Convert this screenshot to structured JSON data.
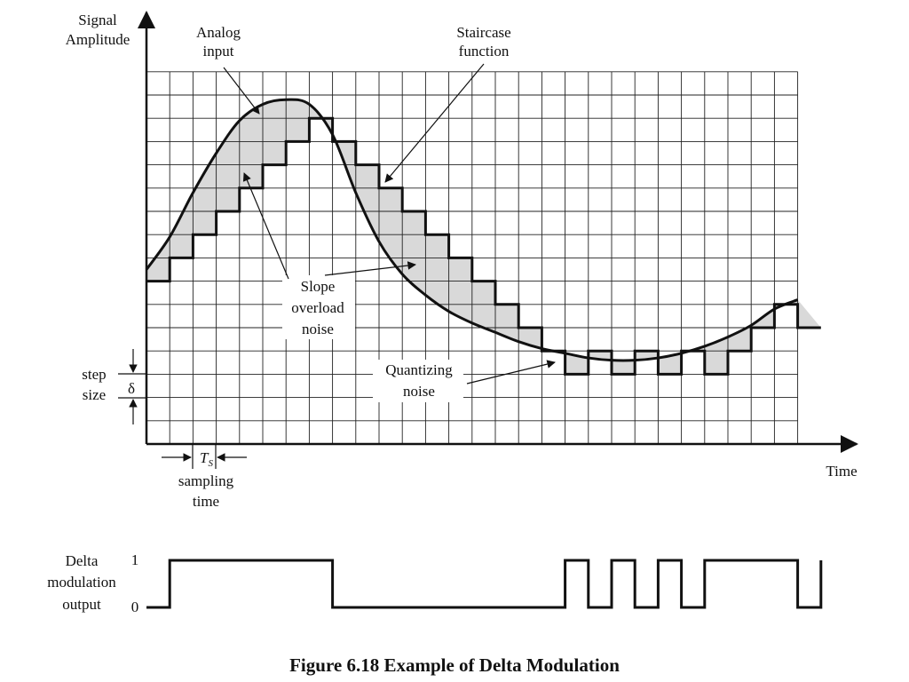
{
  "figure": {
    "caption": "Figure 6.18  Example of Delta Modulation",
    "y_axis_label": [
      "Signal",
      "Amplitude"
    ],
    "x_axis_label": "Time",
    "annotations": {
      "analog_input": [
        "Analog",
        "input"
      ],
      "staircase_function": [
        "Staircase",
        "function"
      ],
      "slope_overload_noise": [
        "Slope",
        "overload",
        "noise"
      ],
      "quantizing_noise": [
        "Quantizing",
        "noise"
      ],
      "step_size": [
        "step",
        "size"
      ],
      "delta_symbol": "δ",
      "ts_symbol": "T",
      "ts_subscript": "S",
      "sampling_time": [
        "sampling",
        "time"
      ]
    },
    "output": {
      "label": [
        "Delta",
        "modulation",
        "output"
      ],
      "level_high": "1",
      "level_low": "0",
      "bits": [
        1,
        1,
        1,
        1,
        1,
        1,
        1,
        0,
        0,
        0,
        0,
        0,
        0,
        0,
        0,
        0,
        0,
        1,
        0,
        1,
        0,
        1,
        0,
        1,
        1,
        1,
        1,
        0,
        1
      ]
    },
    "grid": {
      "columns": 28,
      "rows": 16
    },
    "staircase_levels": [
      7,
      8,
      9,
      10,
      11,
      12,
      13,
      14,
      13,
      12,
      11,
      10,
      9,
      8,
      7,
      6,
      5,
      4,
      3,
      4,
      3,
      4,
      3,
      4,
      3,
      4,
      5,
      6,
      5
    ],
    "analog_curve": [
      [
        0,
        7.5
      ],
      [
        1,
        8.9
      ],
      [
        2,
        10.8
      ],
      [
        3,
        12.5
      ],
      [
        4,
        13.9
      ],
      [
        5,
        14.6
      ],
      [
        6,
        14.8
      ],
      [
        7,
        14.6
      ],
      [
        8,
        13.3
      ],
      [
        9,
        10.8
      ],
      [
        10,
        8.7
      ],
      [
        11,
        7.3
      ],
      [
        12,
        6.4
      ],
      [
        13,
        5.7
      ],
      [
        14,
        5.2
      ],
      [
        15,
        4.8
      ],
      [
        16,
        4.4
      ],
      [
        17,
        4.1
      ],
      [
        18,
        3.9
      ],
      [
        19,
        3.7
      ],
      [
        20,
        3.6
      ],
      [
        21,
        3.6
      ],
      [
        22,
        3.7
      ],
      [
        23,
        3.9
      ],
      [
        24,
        4.2
      ],
      [
        25,
        4.6
      ],
      [
        26,
        5.1
      ],
      [
        27,
        5.8
      ],
      [
        28,
        6.2
      ]
    ]
  }
}
